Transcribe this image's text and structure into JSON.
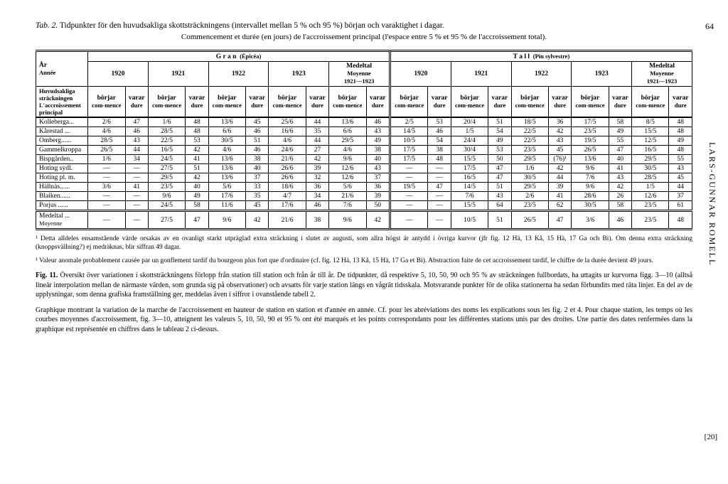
{
  "page_number_top": "64",
  "side_author": "LARS-GUNNAR ROMELL",
  "side_page": "[20]",
  "title_prefix": "Tab. 2.",
  "title_main": "Tidpunkter för den huvudsakliga skottsträckningens (intervallet mellan 5 % och 95 %) början och varaktighet i dagar.",
  "subtitle": "Commencement et durée (en jours) de l'accroissement principal (l'espace entre 5 % et 95 % de l'accroissement total).",
  "col_year": "År",
  "col_year_fr": "Année",
  "species1": "G r a n",
  "species1_latin": "(Épicéa)",
  "species2": "T a l l",
  "species2_latin": "(Pin sylvestre)",
  "years": [
    "1920",
    "1921",
    "1922",
    "1923"
  ],
  "medeltal": "Medeltal",
  "moyenne": "Moyenne",
  "medeltal_range": "1921—1923",
  "row_header1": "Huvudsakliga",
  "row_header2": "sträckningen",
  "row_header3": "L'accroissement",
  "row_header4": "principal",
  "subcol1": "börjar",
  "subcol1_fr": "com-mence",
  "subcol2": "varar",
  "subcol2_fr": "dure",
  "stations": [
    {
      "name": "Kolleberga...",
      "g": [
        [
          "2/6",
          "47"
        ],
        [
          "1/6",
          "48"
        ],
        [
          "13/6",
          "45"
        ],
        [
          "25/6",
          "44"
        ],
        [
          "13/6",
          "46"
        ]
      ],
      "t": [
        [
          "2/5",
          "53"
        ],
        [
          "20/4",
          "51"
        ],
        [
          "18/5",
          "36"
        ],
        [
          "17/5",
          "58"
        ],
        [
          "8/5",
          "48"
        ]
      ]
    },
    {
      "name": "Kårestad ...",
      "g": [
        [
          "4/6",
          "46"
        ],
        [
          "28/5",
          "48"
        ],
        [
          "6/6",
          "46"
        ],
        [
          "16/6",
          "35"
        ],
        [
          "6/6",
          "43"
        ]
      ],
      "t": [
        [
          "14/5",
          "46"
        ],
        [
          "1/5",
          "54"
        ],
        [
          "22/5",
          "42"
        ],
        [
          "23/5",
          "49"
        ],
        [
          "15/5",
          "48"
        ]
      ]
    },
    {
      "name": "Omberg......",
      "g": [
        [
          "28/5",
          "43"
        ],
        [
          "22/5",
          "53"
        ],
        [
          "30/5",
          "51"
        ],
        [
          "4/6",
          "44"
        ],
        [
          "29/5",
          "49"
        ]
      ],
      "t": [
        [
          "10/5",
          "54"
        ],
        [
          "24/4",
          "49"
        ],
        [
          "22/5",
          "43"
        ],
        [
          "19/5",
          "55"
        ],
        [
          "12/5",
          "49"
        ]
      ]
    },
    {
      "name": "Gammelkroppa",
      "g": [
        [
          "26/5",
          "44"
        ],
        [
          "16/5",
          "42"
        ],
        [
          "4/6",
          "46"
        ],
        [
          "24/6",
          "27"
        ],
        [
          "4/6",
          "38"
        ]
      ],
      "t": [
        [
          "17/5",
          "38"
        ],
        [
          "30/4",
          "53"
        ],
        [
          "23/5",
          "45"
        ],
        [
          "26/5",
          "47"
        ],
        [
          "16/5",
          "48"
        ]
      ]
    },
    {
      "name": "Bispgården..",
      "g": [
        [
          "1/6",
          "34"
        ],
        [
          "24/5",
          "41"
        ],
        [
          "13/6",
          "38"
        ],
        [
          "21/6",
          "42"
        ],
        [
          "9/6",
          "40"
        ]
      ],
      "t": [
        [
          "17/5",
          "48"
        ],
        [
          "15/5",
          "50"
        ],
        [
          "29/5",
          "(76)¹"
        ],
        [
          "13/6",
          "40"
        ],
        [
          "29/5",
          "55"
        ]
      ]
    },
    {
      "name": "Hoting sydl.",
      "g": [
        [
          "—",
          "—"
        ],
        [
          "27/5",
          "51"
        ],
        [
          "13/6",
          "40"
        ],
        [
          "26/6",
          "39"
        ],
        [
          "12/6",
          "43"
        ]
      ],
      "t": [
        [
          "—",
          "—"
        ],
        [
          "17/5",
          "47"
        ],
        [
          "1/6",
          "42"
        ],
        [
          "9/6",
          "41"
        ],
        [
          "30/5",
          "43"
        ]
      ]
    },
    {
      "name": "Hoting pl. m.",
      "g": [
        [
          "—",
          "—"
        ],
        [
          "29/5",
          "42"
        ],
        [
          "13/6",
          "37"
        ],
        [
          "26/6",
          "32"
        ],
        [
          "12/6",
          "37"
        ]
      ],
      "t": [
        [
          "—",
          "—"
        ],
        [
          "16/5",
          "47"
        ],
        [
          "30/5",
          "44"
        ],
        [
          "7/6",
          "43"
        ],
        [
          "28/5",
          "45"
        ]
      ]
    },
    {
      "name": "Hällnäs......",
      "g": [
        [
          "3/6",
          "41"
        ],
        [
          "23/5",
          "40"
        ],
        [
          "5/6",
          "33"
        ],
        [
          "18/6",
          "36"
        ],
        [
          "5/6",
          "36"
        ]
      ],
      "t": [
        [
          "19/5",
          "47"
        ],
        [
          "14/5",
          "51"
        ],
        [
          "29/5",
          "39"
        ],
        [
          "9/6",
          "42"
        ],
        [
          "1/5",
          "44"
        ]
      ]
    },
    {
      "name": "Blaiken......",
      "g": [
        [
          "—",
          "—"
        ],
        [
          "9/6",
          "49"
        ],
        [
          "17/6",
          "35"
        ],
        [
          "4/7",
          "34"
        ],
        [
          "21/6",
          "39"
        ]
      ],
      "t": [
        [
          "—",
          "—"
        ],
        [
          "7/6",
          "43"
        ],
        [
          "2/6",
          "41"
        ],
        [
          "28/6",
          "26"
        ],
        [
          "12/6",
          "37"
        ]
      ]
    },
    {
      "name": "Porjus ......",
      "g": [
        [
          "—",
          "—"
        ],
        [
          "24/5",
          "58"
        ],
        [
          "11/6",
          "45"
        ],
        [
          "17/6",
          "46"
        ],
        [
          "7/6",
          "50"
        ]
      ],
      "t": [
        [
          "—",
          "—"
        ],
        [
          "15/5",
          "64"
        ],
        [
          "23/5",
          "62"
        ],
        [
          "30/5",
          "58"
        ],
        [
          "23/5",
          "61"
        ]
      ]
    }
  ],
  "mean_row": {
    "name": "Medeltal ...",
    "name2": "Moyenne",
    "g": [
      [
        "—",
        "—"
      ],
      [
        "27/5",
        "47"
      ],
      [
        "9/6",
        "42"
      ],
      [
        "21/6",
        "38"
      ],
      [
        "9/6",
        "42"
      ]
    ],
    "t": [
      [
        "—",
        "—"
      ],
      [
        "10/5",
        "51"
      ],
      [
        "26/5",
        "47"
      ],
      [
        "3/6",
        "46"
      ],
      [
        "23/5",
        "48"
      ]
    ]
  },
  "footnote1": "¹ Detta alldeles ensamstående värde orsakas av en ovanligt starkt utpräglad extra sträckning i slutet av augusti, som allra högst är antydd i övriga kurvor (jfr fig. 12 Hä, 13 Kå, 15 Hä, 17 Ga och Bi). Om denna extra sträckning (knoppsvällning?) ej medräknas, blir siffran 49 dagar.",
  "footnote2": "¹ Valeur anomale probablement causée par un gonflement tardif du bourgeon plus fort que d'ordinaire (cf. fig. 12 Hä, 13 Kå, 15 Hä, 17 Ga et Bi). Abstraction faite de cet accroissement tardif, le chiffre de la durée devient 49 jours.",
  "fig_label": "Fig. 11.",
  "fig_text": "Översikt över variationen i skottsträckningens förlopp från station till station och från år till år. De tidpunkter, då respektive 5, 10, 50, 90 och 95 % av sträckningen fullbordats, ha uttagits ur kurvorna figg. 3—10 (alltså lineär interpolation mellan de närmaste värden, som grunda sig på observationer) och avsatts för varje station längs en vågrät tidsskala. Motsvarande punkter för de olika stationerna ha sedan förbundits med räta linjer. En del av de upplysningar, som denna grafiska framställning ger, meddelas även i siffror i ovanstående tabell 2.",
  "fig_fr": "Graphique montrant la variation de la marche de l'accroissement en hauteur de station en station et d'année en année. Cf. pour les abréviations des noms les explications sous les fig. 2 et 4. Pour chaque station, les temps où les courbes moyennes d'accroissement, fig. 3—10, atteignent les valeurs 5, 10, 50, 90 et 95 % ont été marqués et les points correspondants pour les différentes stations unis par des droites. Une partie des dates renfermées dans la graphique est représentée en chiffres dans le tableau 2 ci-dessus."
}
